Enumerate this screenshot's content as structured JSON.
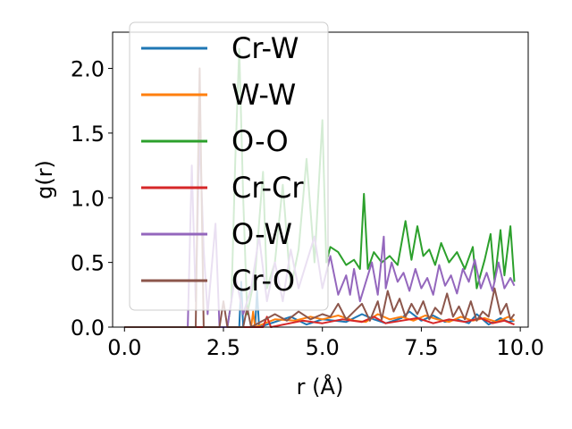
{
  "chart_data": {
    "type": "line",
    "xlabel": "r (Å)",
    "ylabel": "g(r)",
    "xlim": [
      -0.3,
      10.2
    ],
    "ylim": [
      0.0,
      2.28
    ],
    "xticks": [
      "0.0",
      "2.5",
      "5.0",
      "7.5",
      "10.0"
    ],
    "yticks": [
      "0.0",
      "0.5",
      "1.0",
      "1.5",
      "2.0"
    ],
    "grid": false,
    "legend_position": "upper-left",
    "series": [
      {
        "name": "Cr-W",
        "color": "#1f77b4",
        "points": [
          [
            0,
            0
          ],
          [
            2.9,
            0
          ],
          [
            2.95,
            0.35
          ],
          [
            3.0,
            0
          ],
          [
            3.3,
            0
          ],
          [
            3.35,
            0.28
          ],
          [
            3.4,
            0
          ],
          [
            3.9,
            0.05
          ],
          [
            4.2,
            0.08
          ],
          [
            4.6,
            0.02
          ],
          [
            5.0,
            0.06
          ],
          [
            5.3,
            0.05
          ],
          [
            5.6,
            0.04
          ],
          [
            6.0,
            0.1
          ],
          [
            6.3,
            0.06
          ],
          [
            6.6,
            0.03
          ],
          [
            7.0,
            0.07
          ],
          [
            7.2,
            0.12
          ],
          [
            7.5,
            0.05
          ],
          [
            7.8,
            0.09
          ],
          [
            8.1,
            0.04
          ],
          [
            8.4,
            0.06
          ],
          [
            8.7,
            0.03
          ],
          [
            8.9,
            0.1
          ],
          [
            9.2,
            0.02
          ],
          [
            9.5,
            0.07
          ],
          [
            9.7,
            0.04
          ],
          [
            9.85,
            0.05
          ]
        ]
      },
      {
        "name": "W-W",
        "color": "#ff7f0e",
        "points": [
          [
            0,
            0
          ],
          [
            3.2,
            0
          ],
          [
            3.25,
            0.12
          ],
          [
            3.3,
            0
          ],
          [
            3.8,
            0.06
          ],
          [
            4.3,
            0.05
          ],
          [
            4.7,
            0.08
          ],
          [
            5.0,
            0.06
          ],
          [
            5.4,
            0.09
          ],
          [
            5.8,
            0.05
          ],
          [
            6.1,
            0.04
          ],
          [
            6.4,
            0.1
          ],
          [
            6.7,
            0.06
          ],
          [
            7.0,
            0.08
          ],
          [
            7.3,
            0.05
          ],
          [
            7.6,
            0.09
          ],
          [
            7.9,
            0.06
          ],
          [
            8.2,
            0.04
          ],
          [
            8.5,
            0.08
          ],
          [
            8.8,
            0.05
          ],
          [
            9.1,
            0.07
          ],
          [
            9.4,
            0.04
          ],
          [
            9.7,
            0.08
          ],
          [
            9.85,
            0.05
          ]
        ]
      },
      {
        "name": "O-O",
        "color": "#2ca02c",
        "points": [
          [
            0,
            0
          ],
          [
            2.6,
            0
          ],
          [
            2.7,
            0.2
          ],
          [
            2.8,
            1.3
          ],
          [
            2.9,
            2.15
          ],
          [
            3.0,
            1.0
          ],
          [
            3.1,
            0.1
          ],
          [
            3.3,
            0.4
          ],
          [
            3.5,
            1.2
          ],
          [
            3.6,
            0.3
          ],
          [
            3.8,
            0.5
          ],
          [
            4.0,
            1.1
          ],
          [
            4.2,
            0.3
          ],
          [
            4.4,
            0.6
          ],
          [
            4.6,
            1.3
          ],
          [
            4.8,
            0.5
          ],
          [
            5.0,
            1.6
          ],
          [
            5.1,
            0.5
          ],
          [
            5.2,
            0.62
          ],
          [
            5.4,
            0.58
          ],
          [
            5.6,
            0.48
          ],
          [
            5.8,
            0.52
          ],
          [
            5.95,
            0.45
          ],
          [
            6.05,
            1.03
          ],
          [
            6.15,
            0.45
          ],
          [
            6.3,
            0.58
          ],
          [
            6.5,
            0.5
          ],
          [
            6.7,
            0.55
          ],
          [
            6.9,
            0.48
          ],
          [
            7.1,
            0.82
          ],
          [
            7.25,
            0.52
          ],
          [
            7.4,
            0.78
          ],
          [
            7.55,
            0.55
          ],
          [
            7.7,
            0.6
          ],
          [
            7.85,
            0.48
          ],
          [
            8.0,
            0.65
          ],
          [
            8.2,
            0.5
          ],
          [
            8.4,
            0.58
          ],
          [
            8.6,
            0.45
          ],
          [
            8.8,
            0.62
          ],
          [
            8.9,
            0.3
          ],
          [
            9.1,
            0.52
          ],
          [
            9.25,
            0.72
          ],
          [
            9.35,
            0.35
          ],
          [
            9.5,
            0.75
          ],
          [
            9.6,
            0.4
          ],
          [
            9.75,
            0.78
          ],
          [
            9.85,
            0.35
          ]
        ]
      },
      {
        "name": "Cr-Cr",
        "color": "#d62728",
        "points": [
          [
            0,
            0
          ],
          [
            3.5,
            0
          ],
          [
            3.6,
            0.08
          ],
          [
            3.7,
            0
          ],
          [
            4.5,
            0.05
          ],
          [
            5.0,
            0.03
          ],
          [
            5.5,
            0.06
          ],
          [
            6.0,
            0.04
          ],
          [
            6.3,
            0.08
          ],
          [
            6.6,
            0.03
          ],
          [
            7.0,
            0.05
          ],
          [
            7.4,
            0.07
          ],
          [
            7.8,
            0.03
          ],
          [
            8.2,
            0.06
          ],
          [
            8.6,
            0.04
          ],
          [
            9.0,
            0.07
          ],
          [
            9.3,
            0.03
          ],
          [
            9.6,
            0.05
          ],
          [
            9.85,
            0.02
          ]
        ]
      },
      {
        "name": "O-W",
        "color": "#9467bd",
        "points": [
          [
            0,
            0
          ],
          [
            1.6,
            0
          ],
          [
            1.7,
            1.25
          ],
          [
            1.8,
            0.2
          ],
          [
            1.9,
            1.5
          ],
          [
            2.0,
            0.6
          ],
          [
            2.1,
            0.1
          ],
          [
            2.3,
            0.8
          ],
          [
            2.4,
            0.0
          ],
          [
            2.6,
            0.0
          ],
          [
            2.8,
            0.4
          ],
          [
            3.0,
            0.1
          ],
          [
            3.2,
            0.3
          ],
          [
            3.4,
            0.7
          ],
          [
            3.6,
            0.2
          ],
          [
            3.8,
            0.5
          ],
          [
            4.0,
            0.2
          ],
          [
            4.2,
            0.6
          ],
          [
            4.4,
            0.3
          ],
          [
            4.6,
            0.5
          ],
          [
            4.8,
            0.7
          ],
          [
            5.0,
            0.3
          ],
          [
            5.2,
            0.55
          ],
          [
            5.4,
            0.25
          ],
          [
            5.6,
            0.4
          ],
          [
            5.7,
            0.25
          ],
          [
            5.8,
            0.45
          ],
          [
            5.95,
            0.2
          ],
          [
            6.1,
            0.35
          ],
          [
            6.25,
            0.5
          ],
          [
            6.4,
            0.25
          ],
          [
            6.55,
            0.7
          ],
          [
            6.6,
            0.3
          ],
          [
            6.75,
            0.5
          ],
          [
            6.9,
            0.35
          ],
          [
            7.05,
            0.42
          ],
          [
            7.2,
            0.28
          ],
          [
            7.35,
            0.45
          ],
          [
            7.5,
            0.3
          ],
          [
            7.65,
            0.38
          ],
          [
            7.8,
            0.25
          ],
          [
            7.95,
            0.48
          ],
          [
            8.1,
            0.32
          ],
          [
            8.25,
            0.4
          ],
          [
            8.4,
            0.26
          ],
          [
            8.55,
            0.45
          ],
          [
            8.7,
            0.35
          ],
          [
            8.85,
            0.52
          ],
          [
            9.0,
            0.3
          ],
          [
            9.15,
            0.42
          ],
          [
            9.3,
            0.28
          ],
          [
            9.45,
            0.5
          ],
          [
            9.6,
            0.3
          ],
          [
            9.75,
            0.38
          ],
          [
            9.85,
            0.32
          ]
        ]
      },
      {
        "name": "Cr-O",
        "color": "#8c564b",
        "points": [
          [
            0,
            0
          ],
          [
            1.8,
            0
          ],
          [
            1.85,
            1.1
          ],
          [
            1.9,
            2.0
          ],
          [
            1.95,
            1.0
          ],
          [
            2.0,
            0
          ],
          [
            2.4,
            0
          ],
          [
            2.5,
            0.2
          ],
          [
            2.6,
            0
          ],
          [
            3.0,
            0
          ],
          [
            3.1,
            0.15
          ],
          [
            3.2,
            0
          ],
          [
            3.5,
            0.05
          ],
          [
            3.8,
            0.1
          ],
          [
            4.1,
            0.05
          ],
          [
            4.4,
            0.12
          ],
          [
            4.7,
            0.06
          ],
          [
            5.0,
            0.1
          ],
          [
            5.2,
            0.08
          ],
          [
            5.4,
            0.18
          ],
          [
            5.6,
            0.06
          ],
          [
            5.8,
            0.12
          ],
          [
            6.0,
            0.18
          ],
          [
            6.2,
            0.05
          ],
          [
            6.4,
            0.2
          ],
          [
            6.5,
            0.06
          ],
          [
            6.65,
            0.28
          ],
          [
            6.8,
            0.12
          ],
          [
            6.95,
            0.22
          ],
          [
            7.1,
            0.08
          ],
          [
            7.25,
            0.18
          ],
          [
            7.4,
            0.1
          ],
          [
            7.55,
            0.2
          ],
          [
            7.7,
            0.06
          ],
          [
            7.85,
            0.15
          ],
          [
            8.0,
            0.1
          ],
          [
            8.15,
            0.26
          ],
          [
            8.3,
            0.08
          ],
          [
            8.45,
            0.16
          ],
          [
            8.6,
            0.06
          ],
          [
            8.75,
            0.2
          ],
          [
            8.9,
            0.05
          ],
          [
            9.05,
            0.12
          ],
          [
            9.2,
            0.08
          ],
          [
            9.35,
            0.3
          ],
          [
            9.5,
            0.1
          ],
          [
            9.65,
            0.18
          ],
          [
            9.75,
            0.06
          ],
          [
            9.85,
            0.1
          ]
        ]
      }
    ]
  }
}
